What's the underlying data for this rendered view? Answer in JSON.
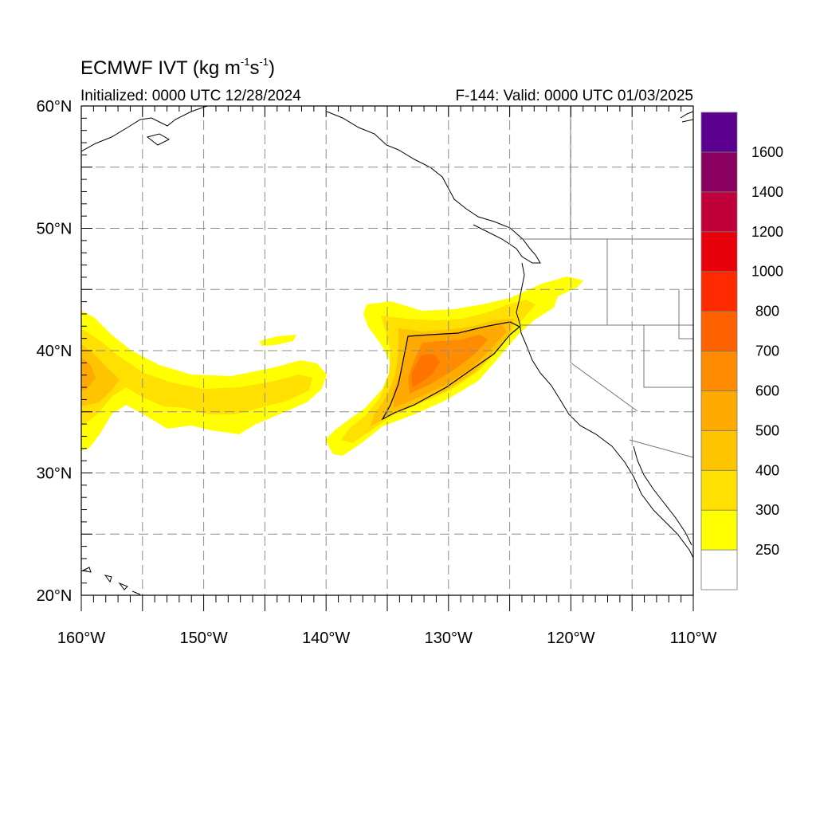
{
  "header": {
    "title_main": "ECMWF IVT (kg m",
    "title_exp1": "-1",
    "title_mid": "s",
    "title_exp2": "-1",
    "title_end": ")",
    "initialized": "Initialized: 0000 UTC 12/28/2024",
    "valid": "F-144: Valid: 0000 UTC 01/03/2025"
  },
  "map": {
    "lat_labels": [
      "60°N",
      "50°N",
      "40°N",
      "30°N",
      "20°N"
    ],
    "lon_labels": [
      "160°W",
      "150°W",
      "140°W",
      "130°W",
      "120°W",
      "110°W"
    ],
    "lat_range": [
      20,
      60
    ],
    "lon_range": [
      -160,
      -110
    ],
    "gridlines": "dashed, every 5 degrees"
  },
  "colorbar": {
    "labels": [
      "250",
      "300",
      "400",
      "500",
      "600",
      "700",
      "800",
      "1000",
      "1200",
      "1400",
      "1600"
    ],
    "colors_bottom_to_top": [
      "#ffffff",
      "#ffff00",
      "#ffe000",
      "#ffc400",
      "#ffaa00",
      "#ff8c00",
      "#ff6200",
      "#ff2a00",
      "#e8000a",
      "#c0003a",
      "#8a0060",
      "#5c0090"
    ]
  },
  "chart_data": {
    "type": "heatmap",
    "title": "ECMWF IVT (kg m-1s-1)",
    "units": "kg m-1 s-1",
    "levels": [
      250,
      300,
      400,
      500,
      600,
      700,
      800,
      1000,
      1200,
      1400,
      1600
    ],
    "features": [
      {
        "region": "atmospheric river plume 40-33N, 136W to California coast",
        "max_ivt_range": "700-800"
      },
      {
        "region": "secondary plume 43-33N, 160W to 140W",
        "max_ivt_range": "400-500"
      }
    ]
  }
}
